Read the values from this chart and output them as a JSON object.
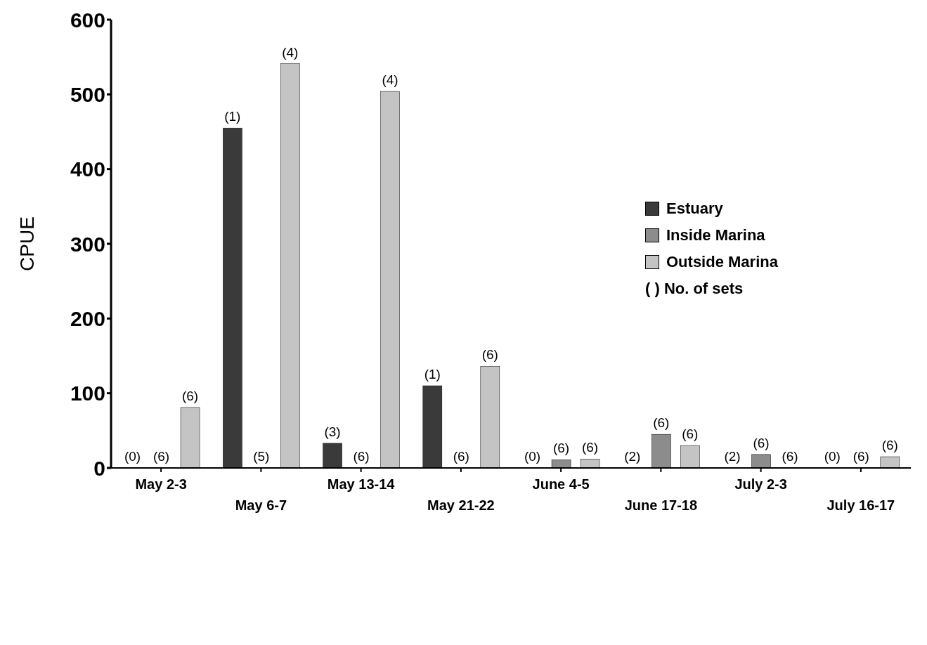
{
  "chart_data": {
    "type": "bar",
    "ylabel": "CPUE",
    "categories": [
      "May 2-3",
      "May 6-7",
      "May 13-14",
      "May 21-22",
      "June 4-5",
      "June 17-18",
      "July 2-3",
      "July 16-17"
    ],
    "series": [
      {
        "name": "Estuary",
        "color": "#3a3a3a",
        "values": [
          0,
          455,
          33,
          110,
          0,
          0,
          0,
          0
        ]
      },
      {
        "name": "Inside Marina",
        "color": "#8c8c8c",
        "values": [
          0,
          0,
          0,
          0,
          11,
          45,
          18,
          0
        ]
      },
      {
        "name": "Outside Marina",
        "color": "#c4c4c4",
        "values": [
          81,
          541,
          504,
          136,
          12,
          30,
          0,
          15
        ]
      }
    ],
    "ylim": [
      0,
      600
    ],
    "yticks": [
      0,
      100,
      200,
      300,
      400,
      500,
      600
    ],
    "grid": false,
    "legend": "top right",
    "annotations": [
      "( ) No. of sets",
      "(0)",
      "(6)",
      "(6)",
      "(1)",
      "(5)",
      "(4)",
      "(3)",
      "(6)",
      "(4)",
      "(1)",
      "(6)",
      "(6)",
      "(0)",
      "(6)",
      "(6)",
      "(2)",
      "(6)",
      "(6)",
      "(2)",
      "(6)",
      "(6)",
      "(0)",
      "(6)",
      "(6)"
    ]
  }
}
